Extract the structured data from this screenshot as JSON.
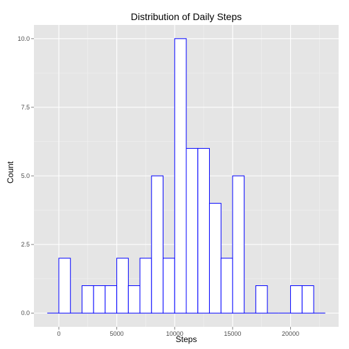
{
  "chart_data": {
    "type": "bar",
    "title": "Distribution of Daily Steps",
    "xlabel": "Steps",
    "ylabel": "Count",
    "bin_width": 1000,
    "bins": [
      {
        "start": -1000,
        "count": 0
      },
      {
        "start": 0,
        "count": 2
      },
      {
        "start": 1000,
        "count": 0
      },
      {
        "start": 2000,
        "count": 1
      },
      {
        "start": 3000,
        "count": 1
      },
      {
        "start": 4000,
        "count": 1
      },
      {
        "start": 5000,
        "count": 2
      },
      {
        "start": 6000,
        "count": 1
      },
      {
        "start": 7000,
        "count": 2
      },
      {
        "start": 8000,
        "count": 5
      },
      {
        "start": 9000,
        "count": 2
      },
      {
        "start": 10000,
        "count": 10
      },
      {
        "start": 11000,
        "count": 6
      },
      {
        "start": 12000,
        "count": 6
      },
      {
        "start": 13000,
        "count": 4
      },
      {
        "start": 14000,
        "count": 2
      },
      {
        "start": 15000,
        "count": 5
      },
      {
        "start": 16000,
        "count": 0
      },
      {
        "start": 17000,
        "count": 1
      },
      {
        "start": 18000,
        "count": 0
      },
      {
        "start": 19000,
        "count": 0
      },
      {
        "start": 20000,
        "count": 1
      },
      {
        "start": 21000,
        "count": 1
      },
      {
        "start": 22000,
        "count": 0
      }
    ],
    "x_ticks": [
      0,
      5000,
      10000,
      15000,
      20000
    ],
    "x_tick_labels": [
      "0",
      "5000",
      "10000",
      "15000",
      "20000"
    ],
    "y_ticks": [
      0,
      2.5,
      5,
      7.5,
      10
    ],
    "y_tick_labels": [
      "0.0",
      "2.5",
      "5.0",
      "7.5",
      "10.0"
    ],
    "xlim": [
      -2150,
      24150
    ],
    "ylim": [
      -0.5,
      10.5
    ],
    "grid": true,
    "colors": {
      "panel_bg": "#e5e5e5",
      "grid_major": "#ffffff",
      "grid_minor": "#f2f2f2",
      "bar_fill": "#ffffff",
      "bar_outline": "#0000ff"
    }
  }
}
